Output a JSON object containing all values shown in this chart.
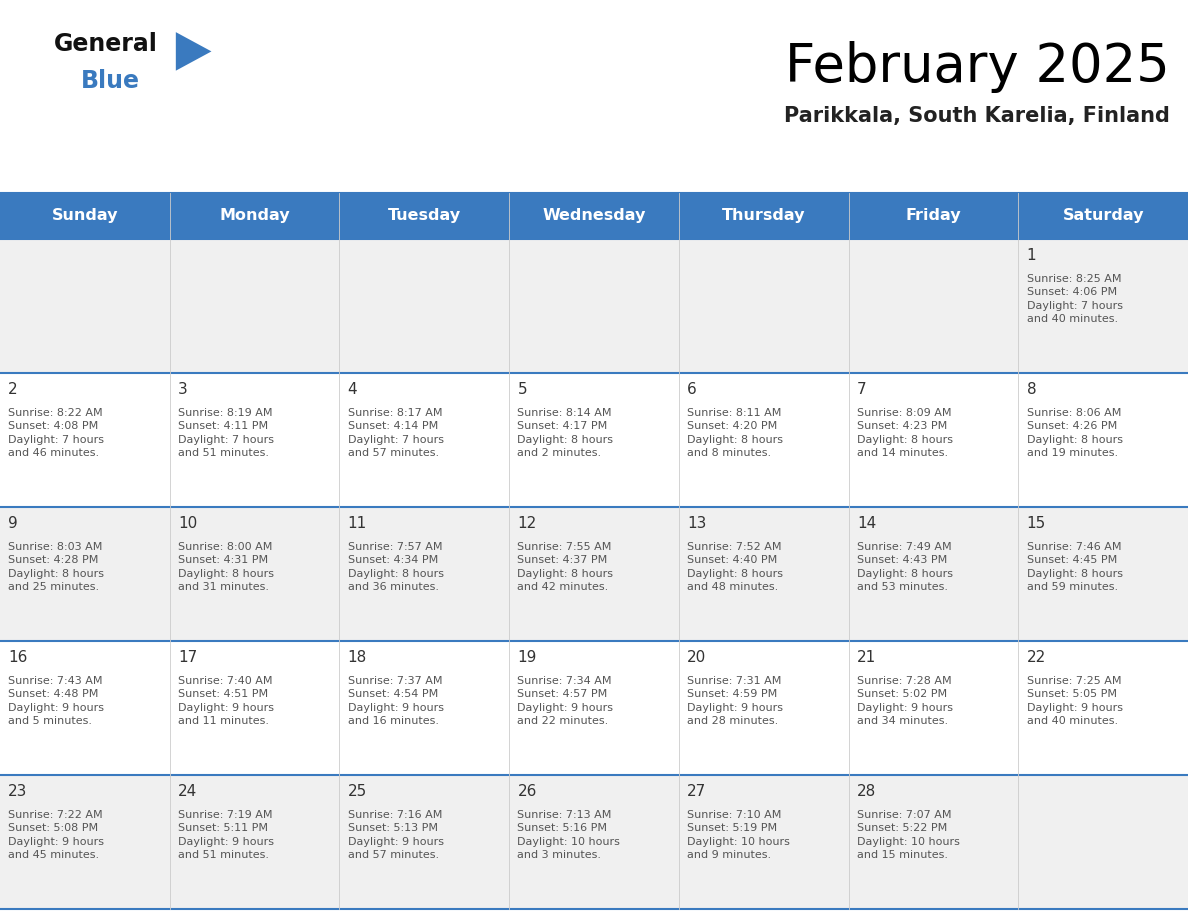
{
  "title": "February 2025",
  "subtitle": "Parikkala, South Karelia, Finland",
  "header_color": "#3a7abf",
  "header_text_color": "#ffffff",
  "day_names": [
    "Sunday",
    "Monday",
    "Tuesday",
    "Wednesday",
    "Thursday",
    "Friday",
    "Saturday"
  ],
  "grid_line_color": "#3a7abf",
  "cell_bg_row0": "#f0f0f0",
  "cell_bg_row1": "#ffffff",
  "cell_bg_row2": "#f0f0f0",
  "cell_bg_row3": "#ffffff",
  "cell_bg_row4": "#f0f0f0",
  "text_color": "#555555",
  "date_color": "#333333",
  "logo_general_color": "#111111",
  "logo_blue_color": "#3a7abf",
  "calendar": [
    [
      null,
      null,
      null,
      null,
      null,
      null,
      {
        "day": "1",
        "sunrise": "8:25 AM",
        "sunset": "4:06 PM",
        "daylight": "7 hours\nand 40 minutes."
      }
    ],
    [
      {
        "day": "2",
        "sunrise": "8:22 AM",
        "sunset": "4:08 PM",
        "daylight": "7 hours\nand 46 minutes."
      },
      {
        "day": "3",
        "sunrise": "8:19 AM",
        "sunset": "4:11 PM",
        "daylight": "7 hours\nand 51 minutes."
      },
      {
        "day": "4",
        "sunrise": "8:17 AM",
        "sunset": "4:14 PM",
        "daylight": "7 hours\nand 57 minutes."
      },
      {
        "day": "5",
        "sunrise": "8:14 AM",
        "sunset": "4:17 PM",
        "daylight": "8 hours\nand 2 minutes."
      },
      {
        "day": "6",
        "sunrise": "8:11 AM",
        "sunset": "4:20 PM",
        "daylight": "8 hours\nand 8 minutes."
      },
      {
        "day": "7",
        "sunrise": "8:09 AM",
        "sunset": "4:23 PM",
        "daylight": "8 hours\nand 14 minutes."
      },
      {
        "day": "8",
        "sunrise": "8:06 AM",
        "sunset": "4:26 PM",
        "daylight": "8 hours\nand 19 minutes."
      }
    ],
    [
      {
        "day": "9",
        "sunrise": "8:03 AM",
        "sunset": "4:28 PM",
        "daylight": "8 hours\nand 25 minutes."
      },
      {
        "day": "10",
        "sunrise": "8:00 AM",
        "sunset": "4:31 PM",
        "daylight": "8 hours\nand 31 minutes."
      },
      {
        "day": "11",
        "sunrise": "7:57 AM",
        "sunset": "4:34 PM",
        "daylight": "8 hours\nand 36 minutes."
      },
      {
        "day": "12",
        "sunrise": "7:55 AM",
        "sunset": "4:37 PM",
        "daylight": "8 hours\nand 42 minutes."
      },
      {
        "day": "13",
        "sunrise": "7:52 AM",
        "sunset": "4:40 PM",
        "daylight": "8 hours\nand 48 minutes."
      },
      {
        "day": "14",
        "sunrise": "7:49 AM",
        "sunset": "4:43 PM",
        "daylight": "8 hours\nand 53 minutes."
      },
      {
        "day": "15",
        "sunrise": "7:46 AM",
        "sunset": "4:45 PM",
        "daylight": "8 hours\nand 59 minutes."
      }
    ],
    [
      {
        "day": "16",
        "sunrise": "7:43 AM",
        "sunset": "4:48 PM",
        "daylight": "9 hours\nand 5 minutes."
      },
      {
        "day": "17",
        "sunrise": "7:40 AM",
        "sunset": "4:51 PM",
        "daylight": "9 hours\nand 11 minutes."
      },
      {
        "day": "18",
        "sunrise": "7:37 AM",
        "sunset": "4:54 PM",
        "daylight": "9 hours\nand 16 minutes."
      },
      {
        "day": "19",
        "sunrise": "7:34 AM",
        "sunset": "4:57 PM",
        "daylight": "9 hours\nand 22 minutes."
      },
      {
        "day": "20",
        "sunrise": "7:31 AM",
        "sunset": "4:59 PM",
        "daylight": "9 hours\nand 28 minutes."
      },
      {
        "day": "21",
        "sunrise": "7:28 AM",
        "sunset": "5:02 PM",
        "daylight": "9 hours\nand 34 minutes."
      },
      {
        "day": "22",
        "sunrise": "7:25 AM",
        "sunset": "5:05 PM",
        "daylight": "9 hours\nand 40 minutes."
      }
    ],
    [
      {
        "day": "23",
        "sunrise": "7:22 AM",
        "sunset": "5:08 PM",
        "daylight": "9 hours\nand 45 minutes."
      },
      {
        "day": "24",
        "sunrise": "7:19 AM",
        "sunset": "5:11 PM",
        "daylight": "9 hours\nand 51 minutes."
      },
      {
        "day": "25",
        "sunrise": "7:16 AM",
        "sunset": "5:13 PM",
        "daylight": "9 hours\nand 57 minutes."
      },
      {
        "day": "26",
        "sunrise": "7:13 AM",
        "sunset": "5:16 PM",
        "daylight": "10 hours\nand 3 minutes."
      },
      {
        "day": "27",
        "sunrise": "7:10 AM",
        "sunset": "5:19 PM",
        "daylight": "10 hours\nand 9 minutes."
      },
      {
        "day": "28",
        "sunrise": "7:07 AM",
        "sunset": "5:22 PM",
        "daylight": "10 hours\nand 15 minutes."
      },
      null
    ]
  ],
  "figsize": [
    11.88,
    9.18
  ],
  "dpi": 100
}
